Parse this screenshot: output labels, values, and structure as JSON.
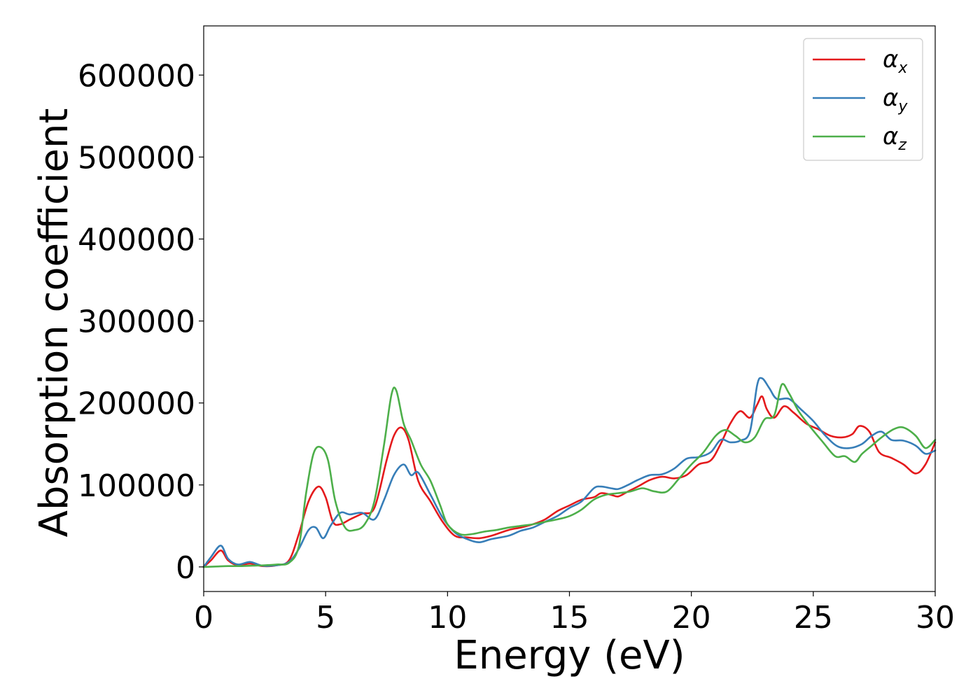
{
  "chart_data": {
    "type": "line",
    "title": "",
    "xlabel": "Energy (eV)",
    "ylabel": "Absorption coefficient",
    "xlim": [
      0,
      30
    ],
    "ylim": [
      -30000,
      660000
    ],
    "xticks": [
      0,
      5,
      10,
      15,
      20,
      25,
      30
    ],
    "yticks": [
      0,
      100000,
      200000,
      300000,
      400000,
      500000,
      600000
    ],
    "grid": false,
    "legend_position": "top-right",
    "series": [
      {
        "name": "α",
        "subscript": "x",
        "color": "#e41a1c",
        "x": [
          0,
          0.3,
          0.7,
          1.0,
          1.4,
          1.9,
          2.4,
          3.0,
          3.5,
          3.9,
          4.3,
          4.7,
          5.0,
          5.3,
          5.6,
          6.0,
          6.5,
          7.0,
          7.5,
          7.8,
          8.1,
          8.4,
          8.8,
          9.3,
          9.8,
          10.3,
          10.8,
          11.3,
          11.8,
          12.5,
          13.0,
          13.5,
          14.0,
          14.5,
          15.0,
          15.5,
          16.0,
          16.3,
          16.7,
          17.0,
          17.4,
          17.8,
          18.3,
          18.8,
          19.3,
          19.8,
          20.3,
          20.8,
          21.2,
          21.6,
          22.0,
          22.4,
          22.7,
          22.9,
          23.1,
          23.4,
          23.8,
          24.2,
          24.7,
          25.2,
          25.7,
          26.2,
          26.6,
          26.9,
          27.3,
          27.7,
          28.2,
          28.7,
          29.2,
          29.6,
          30.0
        ],
        "values": [
          0,
          8000,
          20000,
          8000,
          2000,
          4000,
          1000,
          2000,
          8000,
          40000,
          80000,
          98000,
          85000,
          55000,
          52000,
          58000,
          65000,
          72000,
          130000,
          160000,
          170000,
          155000,
          105000,
          80000,
          55000,
          38000,
          36000,
          35000,
          38000,
          45000,
          48000,
          52000,
          58000,
          68000,
          75000,
          82000,
          85000,
          90000,
          88000,
          86000,
          92000,
          98000,
          106000,
          110000,
          108000,
          112000,
          125000,
          130000,
          150000,
          175000,
          190000,
          182000,
          198000,
          208000,
          192000,
          182000,
          196000,
          188000,
          175000,
          168000,
          160000,
          158000,
          162000,
          172000,
          165000,
          140000,
          133000,
          125000,
          114000,
          125000,
          152000
        ]
      },
      {
        "name": "α",
        "subscript": "y",
        "color": "#377eb8",
        "x": [
          0,
          0.3,
          0.7,
          1.0,
          1.4,
          1.9,
          2.4,
          3.0,
          3.5,
          3.9,
          4.3,
          4.6,
          4.9,
          5.2,
          5.6,
          6.0,
          6.5,
          7.0,
          7.4,
          7.8,
          8.2,
          8.5,
          8.8,
          9.3,
          9.8,
          10.3,
          10.8,
          11.3,
          11.8,
          12.5,
          13.0,
          13.5,
          14.0,
          14.5,
          15.0,
          15.5,
          16.0,
          16.3,
          16.7,
          17.0,
          17.4,
          17.8,
          18.3,
          18.8,
          19.3,
          19.8,
          20.3,
          20.8,
          21.2,
          21.6,
          22.0,
          22.4,
          22.7,
          22.9,
          23.2,
          23.5,
          24.0,
          24.5,
          25.0,
          25.5,
          26.0,
          26.5,
          27.0,
          27.4,
          27.8,
          28.2,
          28.7,
          29.2,
          29.6,
          30.0
        ],
        "values": [
          0,
          12000,
          26000,
          10000,
          3000,
          6000,
          1500,
          2000,
          6000,
          22000,
          45000,
          48000,
          35000,
          50000,
          66000,
          64000,
          66000,
          58000,
          82000,
          112000,
          125000,
          112000,
          115000,
          88000,
          60000,
          42000,
          34000,
          30000,
          34000,
          38000,
          44000,
          48000,
          55000,
          62000,
          72000,
          80000,
          96000,
          98000,
          96000,
          95000,
          100000,
          106000,
          112000,
          113000,
          120000,
          132000,
          134000,
          140000,
          155000,
          152000,
          154000,
          165000,
          222000,
          230000,
          218000,
          205000,
          205000,
          192000,
          178000,
          160000,
          147000,
          145000,
          150000,
          160000,
          165000,
          155000,
          154000,
          148000,
          138000,
          142000
        ]
      },
      {
        "name": "α",
        "subscript": "z",
        "color": "#4daf4a",
        "x": [
          0,
          0.5,
          1.0,
          1.5,
          2.0,
          2.5,
          3.0,
          3.5,
          3.9,
          4.2,
          4.5,
          4.8,
          5.1,
          5.4,
          5.8,
          6.2,
          6.6,
          7.0,
          7.4,
          7.7,
          7.9,
          8.2,
          8.5,
          8.9,
          9.3,
          9.7,
          10.0,
          10.5,
          11.0,
          11.5,
          12.0,
          12.5,
          13.0,
          13.5,
          14.0,
          14.5,
          15.0,
          15.5,
          16.0,
          16.5,
          17.0,
          17.5,
          18.0,
          18.5,
          19.0,
          19.5,
          20.0,
          20.5,
          21.0,
          21.4,
          21.8,
          22.2,
          22.6,
          23.0,
          23.4,
          23.7,
          24.0,
          24.4,
          24.9,
          25.4,
          25.9,
          26.3,
          26.7,
          27.0,
          27.4,
          27.8,
          28.3,
          28.7,
          29.2,
          29.6,
          30.0
        ],
        "values": [
          0,
          500,
          1000,
          1000,
          1500,
          2000,
          3000,
          5000,
          25000,
          90000,
          138000,
          146000,
          130000,
          80000,
          48000,
          45000,
          52000,
          80000,
          150000,
          210000,
          215000,
          175000,
          155000,
          125000,
          105000,
          75000,
          52000,
          40000,
          40000,
          43000,
          45000,
          48000,
          50000,
          52000,
          55000,
          58000,
          62000,
          70000,
          82000,
          88000,
          90000,
          92000,
          96000,
          92000,
          92000,
          108000,
          125000,
          140000,
          160000,
          167000,
          160000,
          152000,
          158000,
          180000,
          185000,
          222000,
          212000,
          190000,
          170000,
          152000,
          135000,
          135000,
          128000,
          138000,
          148000,
          158000,
          168000,
          170000,
          160000,
          145000,
          155000
        ]
      }
    ]
  }
}
